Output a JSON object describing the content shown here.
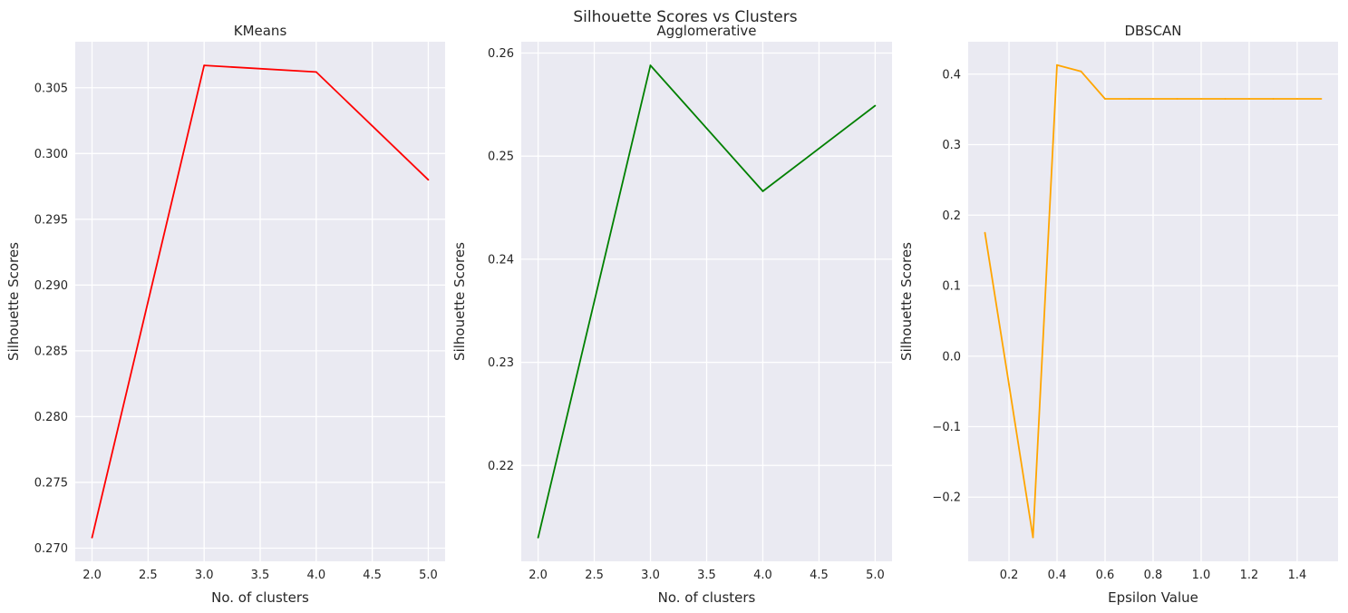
{
  "figure": {
    "suptitle": "Silhouette Scores vs Clusters"
  },
  "chart_data": [
    {
      "type": "line",
      "title": "KMeans",
      "xlabel": "No. of clusters",
      "ylabel": "Silhouette Scores",
      "x": [
        2,
        3,
        4,
        5
      ],
      "series": [
        {
          "values": [
            0.2708,
            0.3067,
            0.3062,
            0.298
          ],
          "color": "#ff0000"
        }
      ],
      "xlim": [
        1.85,
        5.15
      ],
      "ylim": [
        0.269,
        0.3085
      ],
      "xticks": [
        2.0,
        2.5,
        3.0,
        3.5,
        4.0,
        4.5,
        5.0
      ],
      "xtick_labels": [
        "2.0",
        "2.5",
        "3.0",
        "3.5",
        "4.0",
        "4.5",
        "5.0"
      ],
      "yticks": [
        0.27,
        0.275,
        0.28,
        0.285,
        0.29,
        0.295,
        0.3,
        0.305
      ],
      "ytick_labels": [
        "0.270",
        "0.275",
        "0.280",
        "0.285",
        "0.290",
        "0.295",
        "0.300",
        "0.305"
      ],
      "grid": true
    },
    {
      "type": "line",
      "title": "Agglomerative",
      "xlabel": "No. of clusters",
      "ylabel": "Silhouette Scores",
      "x": [
        2,
        3,
        4,
        5
      ],
      "series": [
        {
          "values": [
            0.213,
            0.2588,
            0.2466,
            0.2549
          ],
          "color": "#008000"
        }
      ],
      "xlim": [
        1.85,
        5.15
      ],
      "ylim": [
        0.2107,
        0.2611
      ],
      "xticks": [
        2.0,
        2.5,
        3.0,
        3.5,
        4.0,
        4.5,
        5.0
      ],
      "xtick_labels": [
        "2.0",
        "2.5",
        "3.0",
        "3.5",
        "4.0",
        "4.5",
        "5.0"
      ],
      "yticks": [
        0.22,
        0.23,
        0.24,
        0.25,
        0.26
      ],
      "ytick_labels": [
        "0.22",
        "0.23",
        "0.24",
        "0.25",
        "0.26"
      ],
      "grid": true
    },
    {
      "type": "line",
      "title": "DBSCAN",
      "xlabel": "Epsilon Value",
      "ylabel": "Silhouette Scores",
      "x": [
        0.1,
        0.2,
        0.3,
        0.4,
        0.5,
        0.6,
        0.7,
        0.8,
        0.9,
        1.0,
        1.1,
        1.2,
        1.3,
        1.4,
        1.5
      ],
      "series": [
        {
          "values": [
            0.175,
            -0.04,
            -0.257,
            0.413,
            0.404,
            0.365,
            0.365,
            0.365,
            0.365,
            0.365,
            0.365,
            0.365,
            0.365,
            0.365,
            0.365
          ],
          "color": "#ffa500"
        }
      ],
      "xlim": [
        0.03,
        1.57
      ],
      "ylim": [
        -0.291,
        0.446
      ],
      "xticks": [
        0.2,
        0.4,
        0.6,
        0.8,
        1.0,
        1.2,
        1.4
      ],
      "xtick_labels": [
        "0.2",
        "0.4",
        "0.6",
        "0.8",
        "1.0",
        "1.2",
        "1.4"
      ],
      "yticks": [
        -0.2,
        -0.1,
        0.0,
        0.1,
        0.2,
        0.3,
        0.4
      ],
      "ytick_labels": [
        "−0.2",
        "−0.1",
        "0.0",
        "0.1",
        "0.2",
        "0.3",
        "0.4"
      ],
      "grid": true
    }
  ]
}
